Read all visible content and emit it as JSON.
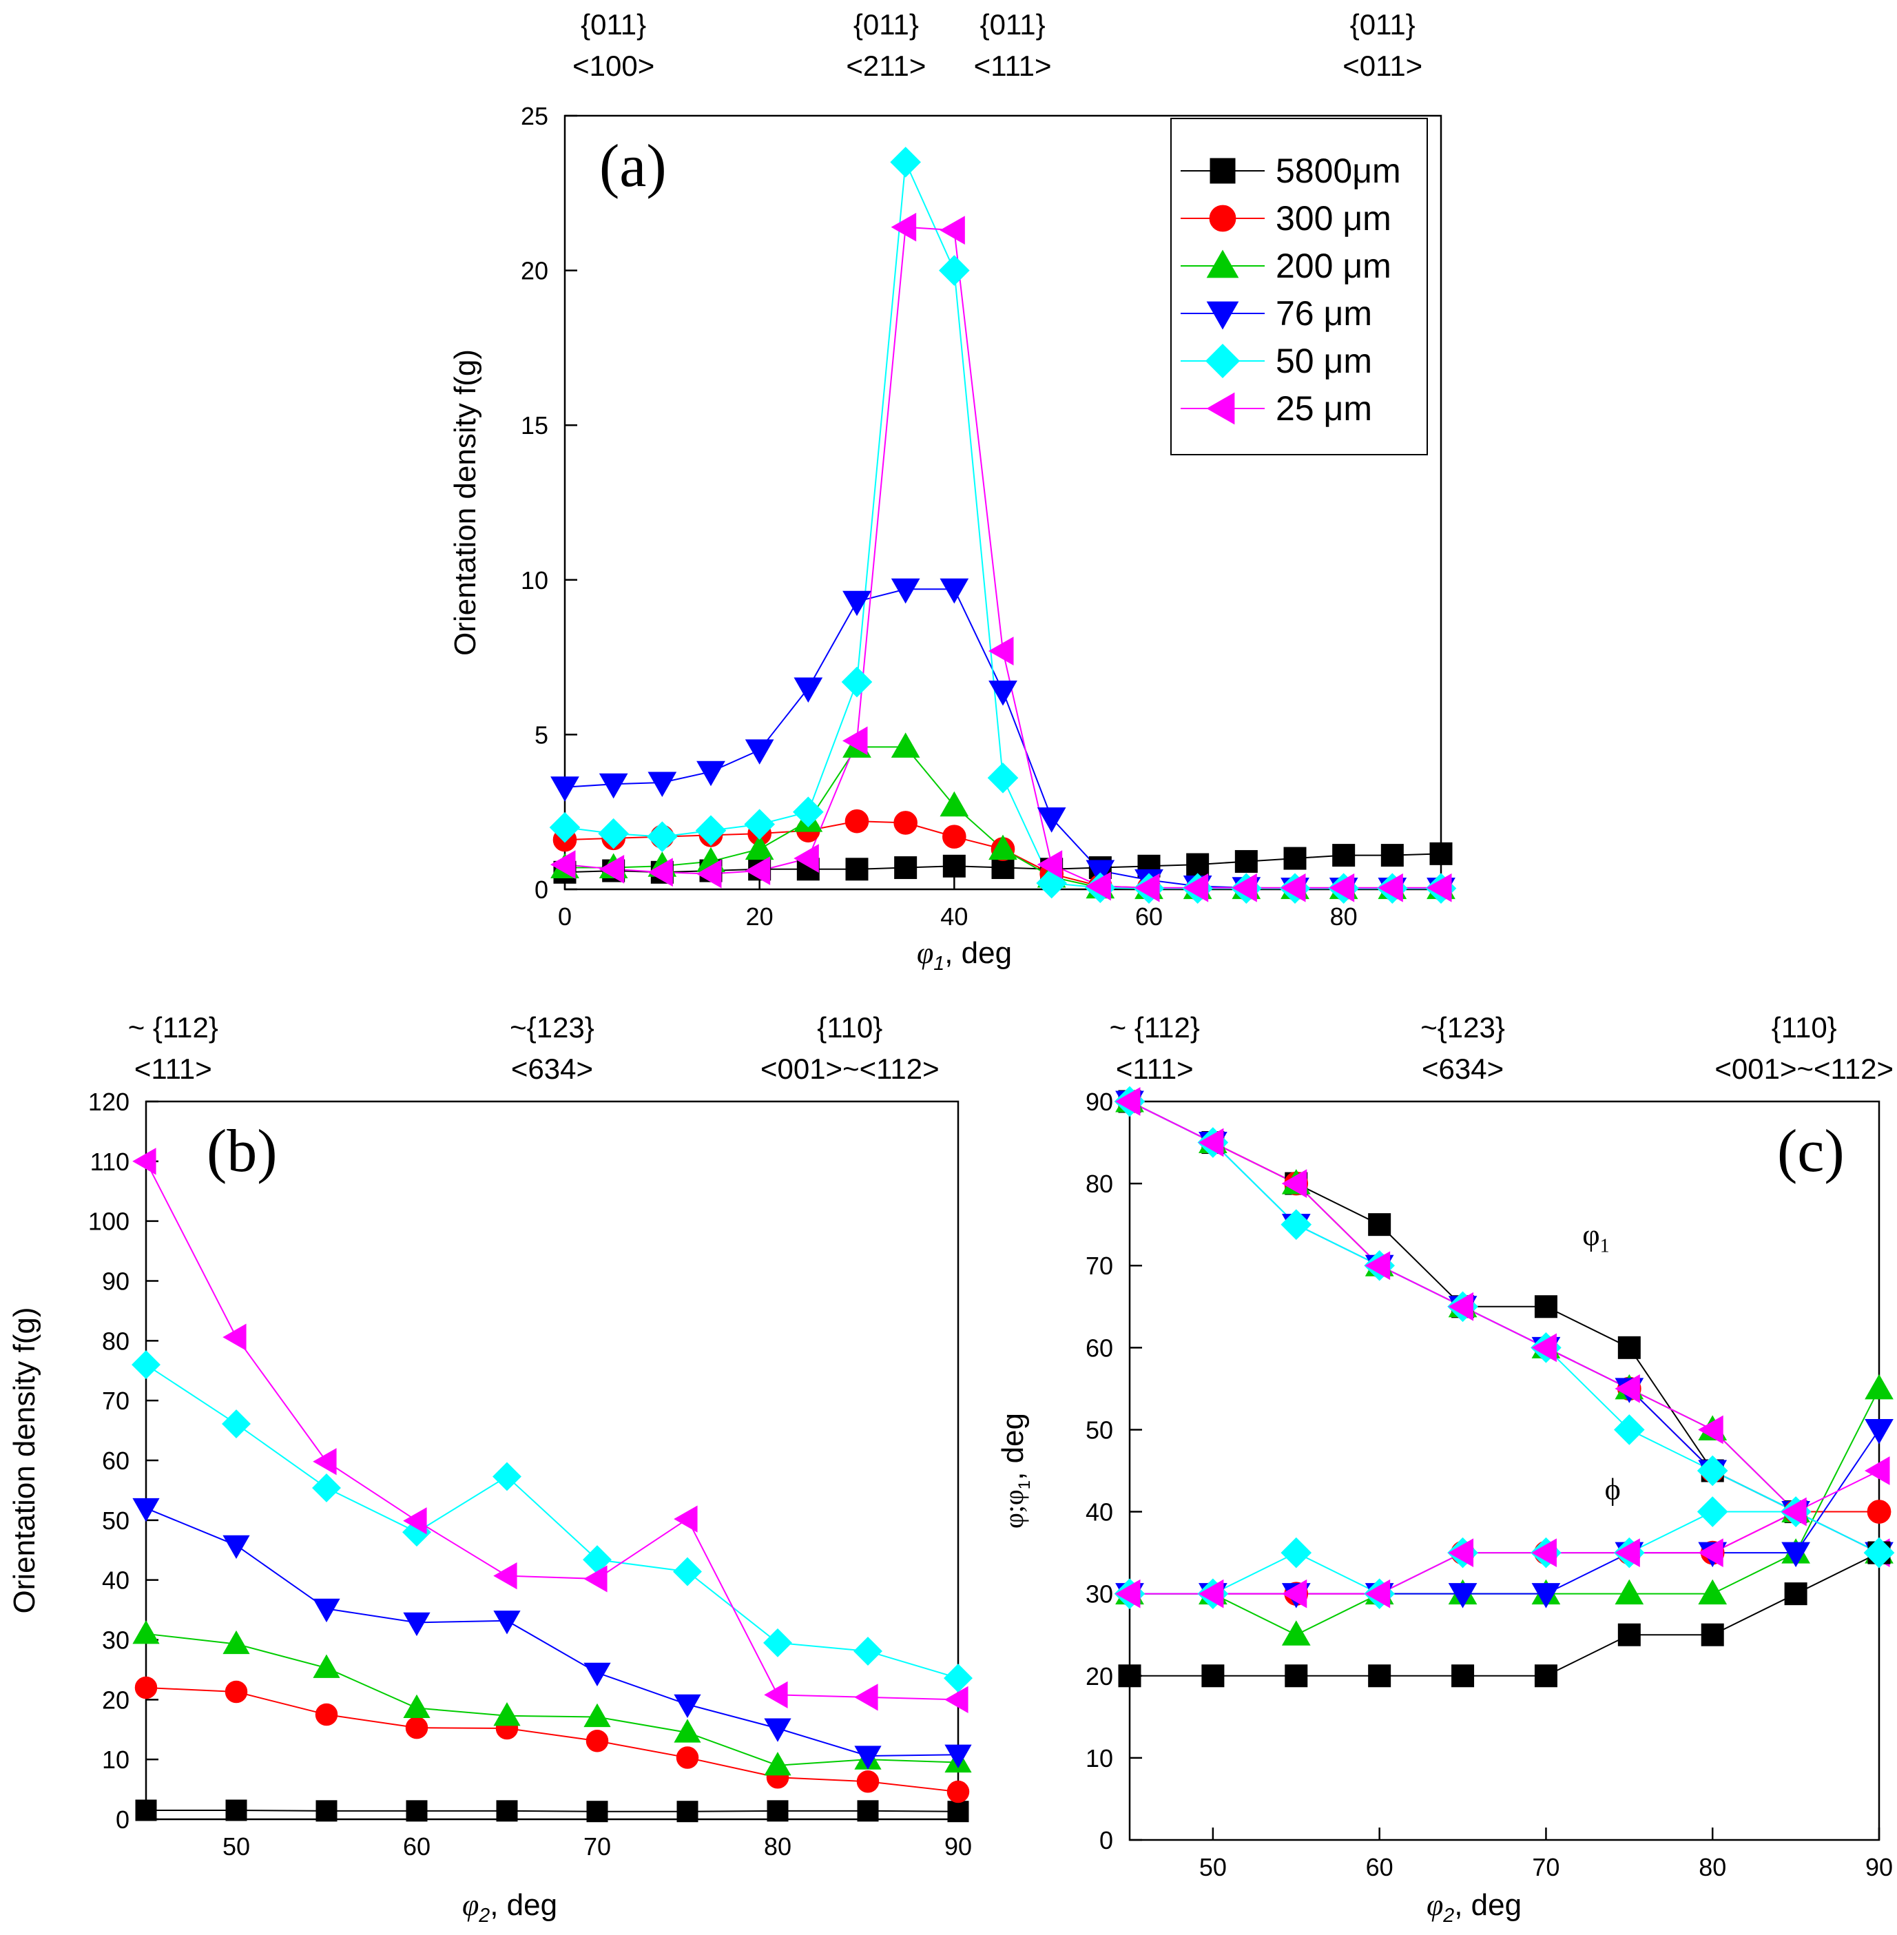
{
  "legend": [
    {
      "label": "5800μm",
      "color": "#000000",
      "marker": "square"
    },
    {
      "label": "300 μm",
      "color": "#ff0000",
      "marker": "circle"
    },
    {
      "label": "200 μm",
      "color": "#00cc00",
      "marker": "triangle-up"
    },
    {
      "label": "76 μm",
      "color": "#0000ff",
      "marker": "triangle-down"
    },
    {
      "label": "50 μm",
      "color": "#00ffff",
      "marker": "diamond"
    },
    {
      "label": "25 μm",
      "color": "#ff00ff",
      "marker": "triangle-left"
    }
  ],
  "chart_data": [
    {
      "id": "a",
      "type": "line",
      "panel_label": "(a)",
      "xlabel_var": "φ",
      "xlabel_sub": "1",
      "xlabel_unit": ", deg",
      "ylabel": "Orientation density f(g)",
      "xlim": [
        0,
        90
      ],
      "ylim": [
        0,
        25
      ],
      "xticks": [
        0,
        20,
        40,
        60,
        80
      ],
      "yticks": [
        0,
        5,
        10,
        15,
        20,
        25
      ],
      "top_annotations": [
        {
          "x": 5,
          "line1": "{011}",
          "line2": "<100>"
        },
        {
          "x": 33,
          "line1": "{011}",
          "line2": "<211>"
        },
        {
          "x": 46,
          "line1": "{011}",
          "line2": "<111>"
        },
        {
          "x": 84,
          "line1": "{011}",
          "line2": "<011>"
        }
      ],
      "x": [
        0,
        5,
        10,
        15,
        20,
        25,
        30,
        35,
        40,
        45,
        50,
        55,
        60,
        65,
        70,
        75,
        80,
        85,
        90
      ],
      "series": [
        {
          "name": "5800μm",
          "values": [
            0.55,
            0.6,
            0.55,
            0.6,
            0.65,
            0.65,
            0.65,
            0.7,
            0.75,
            0.7,
            0.65,
            0.7,
            0.75,
            0.8,
            0.9,
            1.0,
            1.1,
            1.1,
            1.15
          ]
        },
        {
          "name": "300 μm",
          "values": [
            1.6,
            1.65,
            1.7,
            1.75,
            1.8,
            1.9,
            2.2,
            2.15,
            1.7,
            1.3,
            0.5,
            0.1,
            0.05,
            0.03,
            0.03,
            0.03,
            0.03,
            0.03,
            0.03
          ]
        },
        {
          "name": "200 μm",
          "values": [
            0.7,
            0.7,
            0.75,
            0.9,
            1.3,
            2.2,
            4.6,
            4.6,
            2.7,
            1.3,
            0.4,
            0.05,
            0.03,
            0.03,
            0.03,
            0.03,
            0.03,
            0.03,
            0.03
          ]
        },
        {
          "name": "76 μm",
          "values": [
            3.3,
            3.4,
            3.45,
            3.8,
            4.5,
            6.5,
            9.3,
            9.7,
            9.7,
            6.4,
            2.3,
            0.6,
            0.3,
            0.1,
            0.05,
            0.03,
            0.03,
            0.03,
            0.03
          ]
        },
        {
          "name": "50 μm",
          "values": [
            2.0,
            1.8,
            1.7,
            1.9,
            2.1,
            2.5,
            6.7,
            23.5,
            20.0,
            3.6,
            0.2,
            0.05,
            0.03,
            0.03,
            0.03,
            0.03,
            0.03,
            0.03,
            0.03
          ]
        },
        {
          "name": "25 μm",
          "values": [
            0.8,
            0.65,
            0.55,
            0.5,
            0.6,
            1.0,
            4.8,
            21.4,
            21.3,
            7.7,
            0.8,
            0.1,
            0.05,
            0.05,
            0.05,
            0.05,
            0.05,
            0.05,
            0.05
          ]
        }
      ]
    },
    {
      "id": "b",
      "type": "line",
      "panel_label": "(b)",
      "xlabel_var": "φ",
      "xlabel_sub": "2",
      "xlabel_unit": ", deg",
      "ylabel": "Orientation density f(g)",
      "xlim": [
        45,
        90
      ],
      "ylim": [
        0,
        120
      ],
      "xticks": [
        50,
        60,
        70,
        80,
        90
      ],
      "yticks": [
        0,
        10,
        20,
        30,
        40,
        50,
        60,
        70,
        80,
        90,
        100,
        110,
        120
      ],
      "top_annotations": [
        {
          "x": 46.5,
          "line1": "~ {112}",
          "line2": "<111>"
        },
        {
          "x": 67.5,
          "line1": "~{123}",
          "line2": "<634>"
        },
        {
          "x": 84,
          "line1": "{110}",
          "line2": "<001>~<112>"
        }
      ],
      "x": [
        45,
        50,
        55,
        60,
        65,
        70,
        75,
        80,
        85,
        90
      ],
      "series": [
        {
          "name": "5800μm",
          "values": [
            1.5,
            1.5,
            1.4,
            1.4,
            1.4,
            1.3,
            1.3,
            1.4,
            1.4,
            1.3
          ]
        },
        {
          "name": "300 μm",
          "values": [
            22,
            21.3,
            17.5,
            15.3,
            15.2,
            13.1,
            10.3,
            7.0,
            6.3,
            4.6
          ]
        },
        {
          "name": "200 μm",
          "values": [
            31,
            29.3,
            25.3,
            18.6,
            17.3,
            17.1,
            14.5,
            9.0,
            10.0,
            9.5
          ]
        },
        {
          "name": "76 μm",
          "values": [
            52,
            45.8,
            35.2,
            32.9,
            33.2,
            24.5,
            19.2,
            15.2,
            10.6,
            10.8
          ]
        },
        {
          "name": "50 μm",
          "values": [
            76,
            66.1,
            55.4,
            48.0,
            57.3,
            43.4,
            41.4,
            29.5,
            28.1,
            23.6
          ]
        },
        {
          "name": "25 μm",
          "values": [
            110,
            80.6,
            59.8,
            49.9,
            40.7,
            40.2,
            50.2,
            20.8,
            20.4,
            20.0
          ]
        }
      ]
    },
    {
      "id": "c",
      "type": "line",
      "panel_label": "(c)",
      "xlabel_var": "φ",
      "xlabel_sub": "2",
      "xlabel_unit": ", deg",
      "ylabel_main": "φ;φ",
      "ylabel_sub": "1",
      "ylabel_unit": ",  deg",
      "xlim": [
        45,
        90
      ],
      "ylim": [
        0,
        90
      ],
      "xticks": [
        50,
        60,
        70,
        80,
        90
      ],
      "yticks": [
        0,
        10,
        20,
        30,
        40,
        50,
        60,
        70,
        80,
        90
      ],
      "top_annotations": [
        {
          "x": 46.5,
          "line1": "~ {112}",
          "line2": "<111>"
        },
        {
          "x": 65,
          "line1": "~{123}",
          "line2": "<634>"
        },
        {
          "x": 85.5,
          "line1": "{110}",
          "line2": "<001>~<112>"
        }
      ],
      "inner_labels": [
        {
          "main": "φ",
          "sub": "1",
          "x": 73,
          "y": 72.5
        },
        {
          "main": "ϕ",
          "sub": "",
          "x": 74,
          "y": 41.5
        }
      ],
      "x": [
        45,
        50,
        55,
        60,
        65,
        70,
        75,
        80,
        85,
        90
      ],
      "series": [
        {
          "name": "5800μm",
          "values": [
            90,
            85,
            80,
            75,
            65,
            65,
            60,
            45,
            40,
            35
          ]
        },
        {
          "name": "300 μm",
          "values": [
            90,
            85,
            80,
            70,
            65,
            60,
            55,
            45,
            40,
            40
          ]
        },
        {
          "name": "200 μm",
          "values": [
            90,
            85,
            80,
            70,
            65,
            60,
            55,
            50,
            40,
            35
          ]
        },
        {
          "name": "76 μm",
          "values": [
            90,
            85,
            75,
            70,
            65,
            60,
            55,
            45,
            40,
            35
          ]
        },
        {
          "name": "50 μm",
          "values": [
            90,
            85,
            75,
            70,
            65,
            60,
            50,
            45,
            40,
            35
          ]
        },
        {
          "name": "25 μm",
          "values": [
            90,
            85,
            80,
            70,
            65,
            60,
            55,
            50,
            40,
            35
          ]
        },
        {
          "name": "5800μm",
          "values": [
            20,
            20,
            20,
            20,
            20,
            20,
            25,
            25,
            30,
            35
          ]
        },
        {
          "name": "300 μm",
          "values": [
            30,
            30,
            30,
            30,
            35,
            35,
            35,
            35,
            40,
            40
          ]
        },
        {
          "name": "200 μm",
          "values": [
            30,
            30,
            25,
            30,
            30,
            30,
            30,
            30,
            35,
            55
          ]
        },
        {
          "name": "76 μm",
          "values": [
            30,
            30,
            30,
            30,
            30,
            30,
            35,
            35,
            35,
            50
          ]
        },
        {
          "name": "50 μm",
          "values": [
            30,
            30,
            35,
            30,
            35,
            35,
            35,
            40,
            40,
            35
          ]
        },
        {
          "name": "25 μm",
          "values": [
            30,
            30,
            30,
            30,
            35,
            35,
            35,
            35,
            40,
            45
          ]
        }
      ]
    }
  ]
}
